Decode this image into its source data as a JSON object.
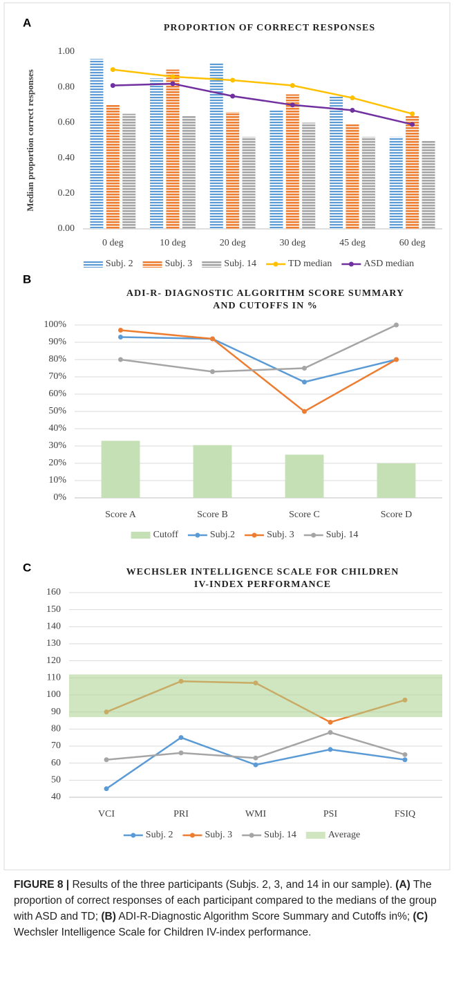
{
  "chart_data": [
    {
      "type": "combo",
      "panel": "A",
      "title": [
        "PROPORTION OF CORRECT RESPONSES"
      ],
      "ylabel": "Median proportion correct responses",
      "bar_style": "striped",
      "grid": false,
      "categories": [
        "0 deg",
        "10 deg",
        "20 deg",
        "30 deg",
        "45 deg",
        "60 deg"
      ],
      "ylim": [
        0,
        1.0
      ],
      "yticks": [
        {
          "value": 0,
          "label": "0.00"
        },
        {
          "value": 0.2,
          "label": "0.20"
        },
        {
          "value": 0.4,
          "label": "0.40"
        },
        {
          "value": 0.6,
          "label": "0.60"
        },
        {
          "value": 0.8,
          "label": "0.80"
        },
        {
          "value": 1.0,
          "label": "1.00"
        }
      ],
      "series": [
        {
          "name": "Subj. 2",
          "type": "bar",
          "color": "#5b9bd5",
          "values": [
            0.96,
            0.85,
            0.94,
            0.67,
            0.75,
            0.52
          ]
        },
        {
          "name": "Subj. 3",
          "type": "bar",
          "color": "#ed7d31",
          "values": [
            0.7,
            0.9,
            0.66,
            0.76,
            0.59,
            0.64
          ]
        },
        {
          "name": "Subj. 14",
          "type": "bar",
          "color": "#a5a5a5",
          "values": [
            0.65,
            0.64,
            0.52,
            0.6,
            0.52,
            0.5
          ]
        },
        {
          "name": "TD median",
          "type": "line",
          "color": "#ffc000",
          "values": [
            0.9,
            0.86,
            0.84,
            0.81,
            0.74,
            0.65
          ]
        },
        {
          "name": "ASD median",
          "type": "line",
          "color": "#7030a0",
          "values": [
            0.81,
            0.82,
            0.75,
            0.7,
            0.67,
            0.59
          ]
        }
      ]
    },
    {
      "type": "combo",
      "panel": "B",
      "title": [
        "ADI-R- DIAGNOSTIC ALGORITHM SCORE SUMMARY",
        "AND CUTOFFS IN %"
      ],
      "grid": true,
      "categories": [
        "Score A",
        "Score B",
        "Score C",
        "Score D"
      ],
      "ylim": [
        0,
        100
      ],
      "yticks": [
        {
          "value": 0,
          "label": "0%"
        },
        {
          "value": 10,
          "label": "10%"
        },
        {
          "value": 20,
          "label": "20%"
        },
        {
          "value": 30,
          "label": "30%"
        },
        {
          "value": 40,
          "label": "40%"
        },
        {
          "value": 50,
          "label": "50%"
        },
        {
          "value": 60,
          "label": "60%"
        },
        {
          "value": 70,
          "label": "70%"
        },
        {
          "value": 80,
          "label": "80%"
        },
        {
          "value": 90,
          "label": "90%"
        },
        {
          "value": 100,
          "label": "100%"
        }
      ],
      "series": [
        {
          "name": "Cutoff",
          "type": "bar",
          "color": "#c5e0b4",
          "values": [
            33,
            30.5,
            25,
            20
          ]
        },
        {
          "name": "Subj.2",
          "type": "line",
          "color": "#5b9bd5",
          "values": [
            93,
            92,
            67,
            80
          ]
        },
        {
          "name": "Subj. 3",
          "type": "line",
          "color": "#ed7d31",
          "values": [
            97,
            92,
            50,
            80
          ]
        },
        {
          "name": "Subj. 14",
          "type": "line",
          "color": "#a5a5a5",
          "values": [
            80,
            73,
            75,
            100
          ]
        }
      ]
    },
    {
      "type": "combo",
      "panel": "C",
      "title": [
        "WECHSLER INTELLIGENCE SCALE FOR CHILDREN",
        "IV-INDEX PERFORMANCE"
      ],
      "grid": true,
      "categories": [
        "VCI",
        "PRI",
        "WMI",
        "PSI",
        "FSIQ"
      ],
      "ylim": [
        40,
        160
      ],
      "yticks": [
        40,
        50,
        60,
        70,
        80,
        90,
        100,
        110,
        120,
        130,
        140,
        150,
        160
      ],
      "series": [
        {
          "name": "Subj. 2",
          "type": "line",
          "color": "#5b9bd5",
          "values": [
            45,
            75,
            59,
            68,
            62
          ]
        },
        {
          "name": "Subj. 3",
          "type": "line",
          "color": "#ed7d31",
          "values": [
            90,
            108,
            107,
            84,
            97
          ]
        },
        {
          "name": "Subj. 14",
          "type": "line",
          "color": "#a5a5a5",
          "values": [
            62,
            66,
            63,
            78,
            65
          ]
        },
        {
          "name": "Average",
          "type": "band",
          "color": "#a9d18e",
          "range": [
            87,
            112
          ]
        }
      ]
    }
  ],
  "caption": [
    "FIGURE 8 |",
    "Results of the three participants (Subjs. 2, 3, and 14 in our sample).",
    "(A)",
    "The proportion of correct responses of each participant compared to the medians of the group with ASD and TD;",
    "(B)",
    "ADI-R-Diagnostic Algorithm Score Summary and Cutoffs in%;",
    "(C)",
    "Wechsler Intelligence Scale for Children IV-index performance."
  ]
}
